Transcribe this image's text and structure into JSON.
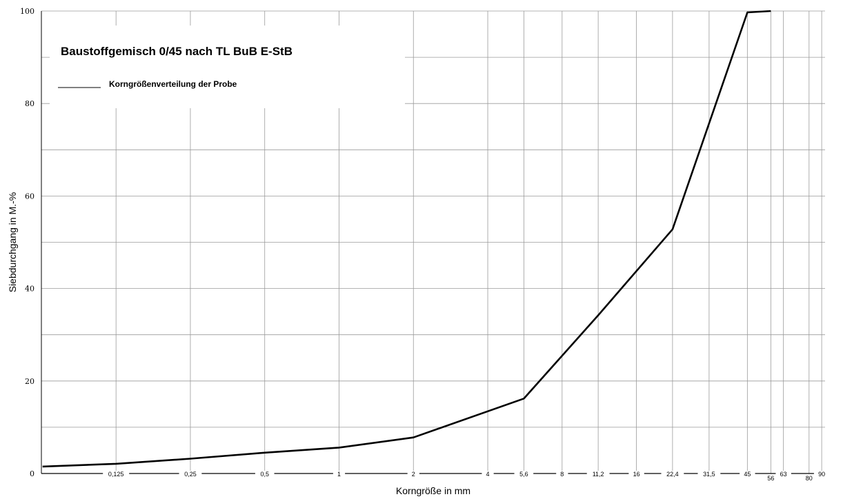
{
  "chart_data": {
    "type": "line",
    "title": "Baustoffgemisch 0/45 nach TL BuB E-StB",
    "xlabel": "Korngröße in mm",
    "ylabel": "Siebdurchgang in M.-%",
    "ylim": [
      0,
      100
    ],
    "y_ticks": [
      "0",
      "20",
      "40",
      "60",
      "80",
      "100"
    ],
    "x_scale": "log",
    "x_ticks": [
      "0,125",
      "0,25",
      "0,5",
      "1",
      "2",
      "4",
      "5,6",
      "8",
      "11,2",
      "16",
      "22,4",
      "31,5",
      "45",
      "56",
      "63",
      "80",
      "90"
    ],
    "grid": true,
    "legend_position": "top-left",
    "series": [
      {
        "name": "Korngrößenverteilung der Probe",
        "x": [
          0.063,
          0.125,
          0.25,
          0.5,
          1,
          2,
          5.6,
          11.2,
          22.4,
          45,
          56
        ],
        "y": [
          1.5,
          2.1,
          3.2,
          4.5,
          5.6,
          7.8,
          16.2,
          34.2,
          52.8,
          99.7,
          100
        ]
      }
    ]
  }
}
